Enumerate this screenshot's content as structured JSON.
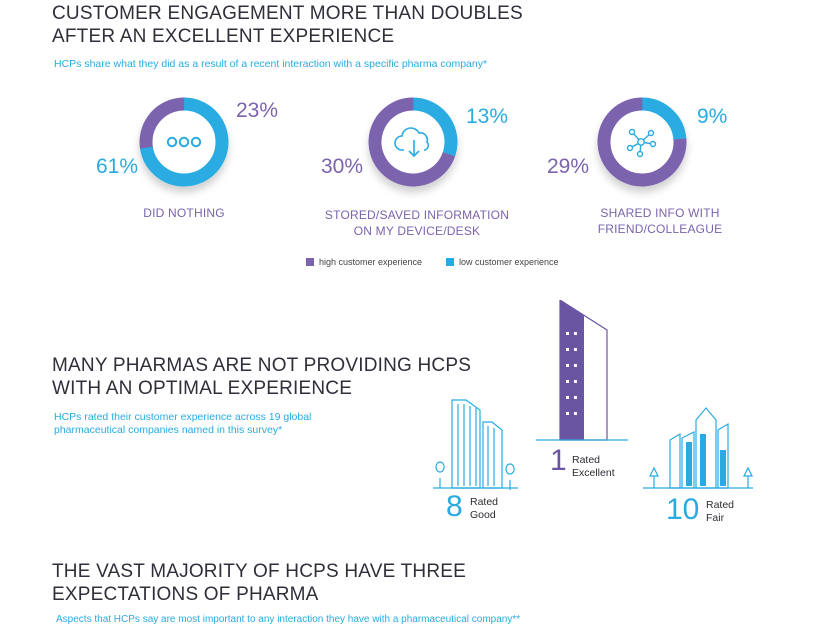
{
  "section1": {
    "title_line1": "CUSTOMER ENGAGEMENT MORE THAN DOUBLES",
    "title_line2": "AFTER AN EXCELLENT EXPERIENCE",
    "subtitle": "HCPs share what they did as a result of a recent interaction with a specific pharma company*"
  },
  "colors": {
    "high": "#7b63ae",
    "low": "#29abe2",
    "track": "#e5e5ea"
  },
  "legend": {
    "high_label": "high customer experience",
    "low_label": "low customer experience"
  },
  "chart_data": [
    {
      "type": "pie",
      "title": "DID NOTHING",
      "icon": "ellipsis-icon",
      "series": [
        {
          "name": "high customer experience",
          "value": 23,
          "label": "23%"
        },
        {
          "name": "low customer experience",
          "value": 61,
          "label": "61%"
        }
      ]
    },
    {
      "type": "pie",
      "title": "STORED/SAVED INFORMATION ON MY DEVICE/DESK",
      "title_line1": "STORED/SAVED INFORMATION",
      "title_line2": "ON MY DEVICE/DESK",
      "icon": "cloud-download-icon",
      "series": [
        {
          "name": "high customer experience",
          "value": 30,
          "label": "30%"
        },
        {
          "name": "low customer experience",
          "value": 13,
          "label": "13%"
        }
      ]
    },
    {
      "type": "pie",
      "title": "SHARED INFO WITH FRIEND/COLLEAGUE",
      "title_line1": "SHARED INFO WITH",
      "title_line2": "FRIEND/COLLEAGUE",
      "icon": "network-share-icon",
      "series": [
        {
          "name": "high customer experience",
          "value": 29,
          "label": "29%"
        },
        {
          "name": "low customer experience",
          "value": 9,
          "label": "9%"
        }
      ]
    }
  ],
  "section2": {
    "title_line1": "MANY PHARMAS ARE NOT PROVIDING HCPS",
    "title_line2": "WITH AN OPTIMAL EXPERIENCE",
    "subtitle_line1": "HCPs rated their customer experience across 19 global",
    "subtitle_line2": "pharmaceutical companies named in this survey*",
    "ratings": {
      "good": {
        "count": "8",
        "label_line1": "Rated",
        "label_line2": "Good"
      },
      "excellent": {
        "count": "1",
        "label_line1": "Rated",
        "label_line2": "Excellent"
      },
      "fair": {
        "count": "10",
        "label_line1": "Rated",
        "label_line2": "Fair"
      }
    }
  },
  "section3": {
    "title_line1": "THE VAST MAJORITY OF HCPS HAVE THREE",
    "title_line2": "EXPECTATIONS OF PHARMA",
    "subtitle": "Aspects that HCPs say are most important to any interaction they have with a pharmaceutical company**"
  }
}
